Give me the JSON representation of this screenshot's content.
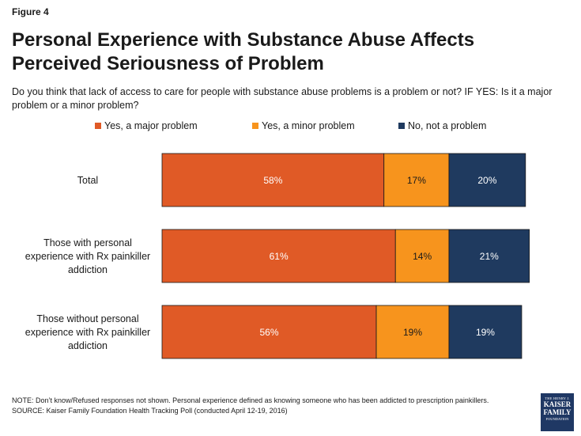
{
  "figure_label": "Figure 4",
  "chart_data": {
    "type": "bar",
    "orientation": "horizontal",
    "stacked": true,
    "title": "Personal Experience with Substance Abuse Affects Perceived Seriousness of Problem",
    "subtitle": "Do you think that lack of access to care for people with substance abuse problems is a problem or not? IF YES: Is it a major problem or a minor problem?",
    "categories": [
      [
        "Total"
      ],
      [
        "Those with personal",
        "experience with Rx painkiller",
        "addiction"
      ],
      [
        "Those without personal",
        "experience with Rx painkiller",
        "addiction"
      ]
    ],
    "series": [
      {
        "name": "Yes, a major problem",
        "color": "#e05a26",
        "values": [
          58,
          61,
          56
        ]
      },
      {
        "name": "Yes, a minor problem",
        "color": "#f7941d",
        "values": [
          17,
          14,
          19
        ]
      },
      {
        "name": "No, not a problem",
        "color": "#1f3a5f",
        "values": [
          20,
          21,
          19
        ]
      }
    ],
    "value_suffix": "%",
    "xlim": [
      0,
      100
    ],
    "legend_position": "top"
  },
  "footnotes": {
    "note": "NOTE: Don’t know/Refused responses not shown. Personal experience defined as knowing someone who has been addicted to prescription painkillers.",
    "source": "SOURCE: Kaiser Family Foundation Health Tracking Poll (conducted April 12-19, 2016)"
  },
  "logo": {
    "line1": "THE HENRY J.",
    "line2": "KAISER",
    "line3": "FAMILY",
    "line4": "FOUNDATION"
  }
}
